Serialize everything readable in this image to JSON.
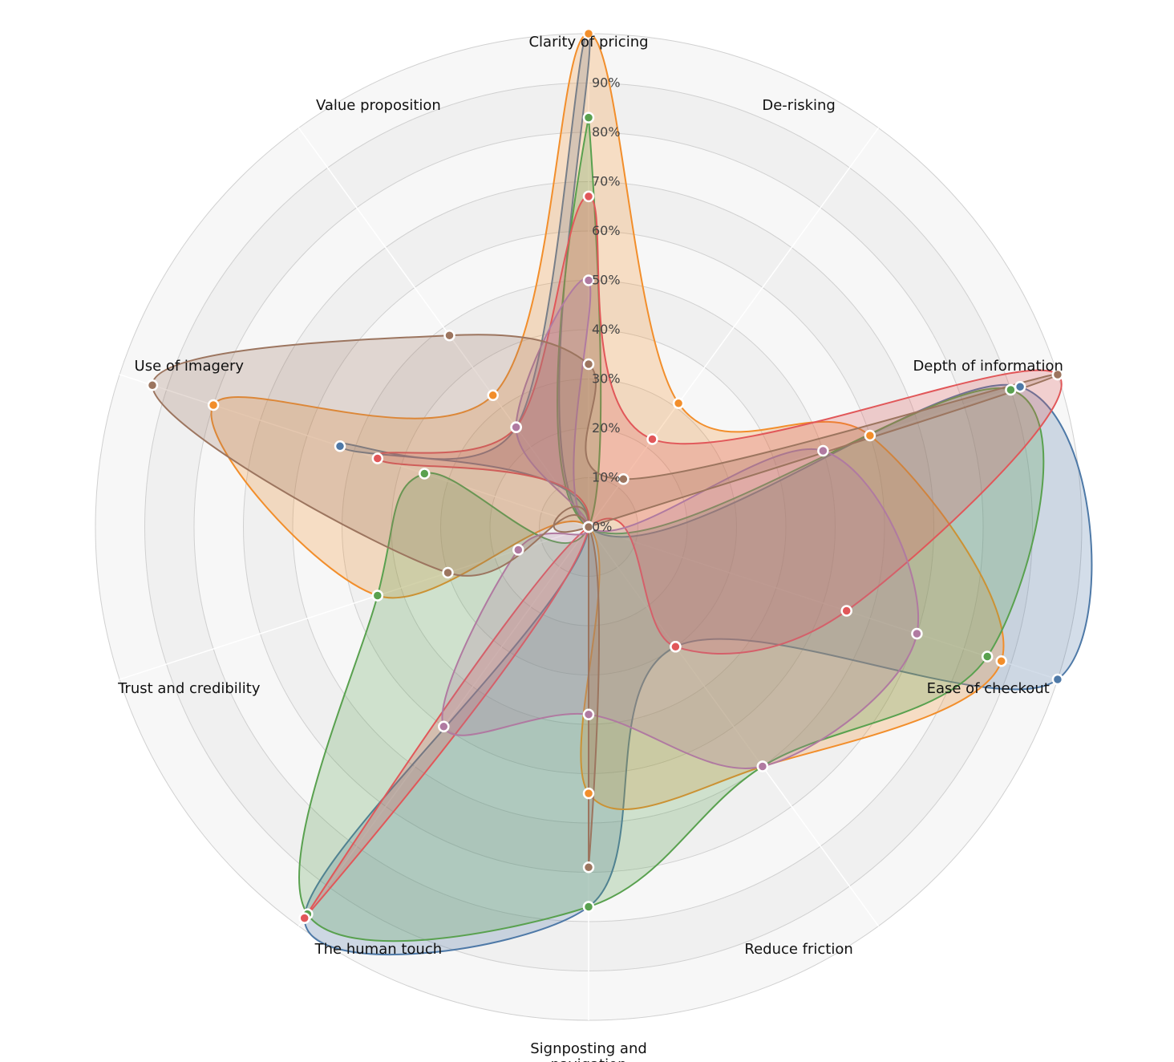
{
  "chart_data": {
    "type": "radar",
    "axes": [
      "Clarity of pricing",
      "De-risking",
      "Depth of information",
      "Ease of checkout",
      "Reduce friction",
      "Signposting and navigation",
      "The human touch",
      "Trust and credibility",
      "Use of imagery",
      "Value proposition"
    ],
    "rlim": [
      0,
      100
    ],
    "ticks": [
      "0%",
      "10%",
      "20%",
      "30%",
      "40%",
      "50%",
      "60%",
      "70%",
      "80%",
      "90%"
    ],
    "grid": true,
    "legend": "none",
    "series": [
      {
        "color": "#4e79a7",
        "values": [
          100,
          0,
          92,
          100,
          30,
          77,
          98,
          0,
          53,
          25
        ]
      },
      {
        "color": "#f28e2b",
        "values": [
          100,
          31,
          60,
          88,
          60,
          54,
          0,
          45,
          80,
          33
        ]
      },
      {
        "color": "#59a14f",
        "values": [
          83,
          0,
          90,
          85,
          60,
          77,
          97,
          45,
          35,
          0
        ]
      },
      {
        "color": "#e15759",
        "values": [
          67,
          22,
          100,
          55,
          30,
          0,
          98,
          0,
          45,
          25
        ]
      },
      {
        "color": "#b07aa1",
        "values": [
          50,
          0,
          50,
          70,
          60,
          38,
          50,
          15,
          0,
          25
        ]
      },
      {
        "color": "#9c755f",
        "values": [
          33,
          12,
          100,
          0,
          0,
          69,
          0,
          30,
          93,
          48
        ]
      }
    ]
  }
}
